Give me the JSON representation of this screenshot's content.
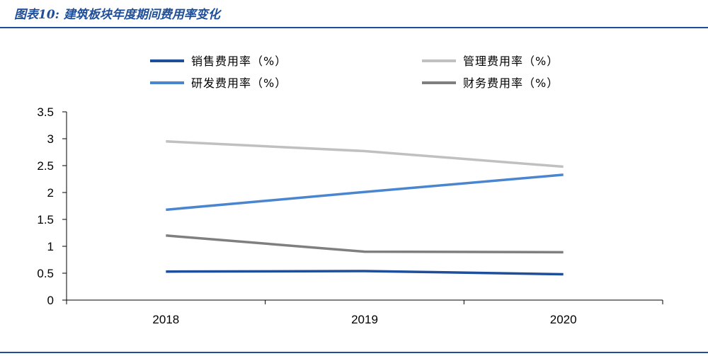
{
  "figure": {
    "title": "图表10: 建筑板块年度期间费用率变化"
  },
  "colors": {
    "sales": "#1f4e9a",
    "mgmt": "#c0c0c0",
    "rnd": "#4a86d0",
    "fin": "#7f7f7f",
    "rule": "#1f4e9a"
  },
  "chart_data": {
    "type": "line",
    "title": "",
    "xlabel": "",
    "ylabel": "",
    "categories": [
      "2018",
      "2019",
      "2020"
    ],
    "ylim": [
      0,
      3.5
    ],
    "yticks": [
      "0",
      "0.5",
      "1",
      "1.5",
      "2",
      "2.5",
      "3",
      "3.5"
    ],
    "grid": false,
    "legend": "top",
    "series": [
      {
        "name": "销售费用率（%）",
        "values": [
          0.53,
          0.54,
          0.48
        ],
        "color": "#1f4e9a"
      },
      {
        "name": "管理费用率（%）",
        "values": [
          2.95,
          2.77,
          2.48
        ],
        "color": "#c0c0c0"
      },
      {
        "name": "研发费用率（%）",
        "values": [
          1.68,
          2.01,
          2.33
        ],
        "color": "#4a86d0"
      },
      {
        "name": "财务费用率（%）",
        "values": [
          1.2,
          0.9,
          0.89
        ],
        "color": "#7f7f7f"
      }
    ]
  }
}
